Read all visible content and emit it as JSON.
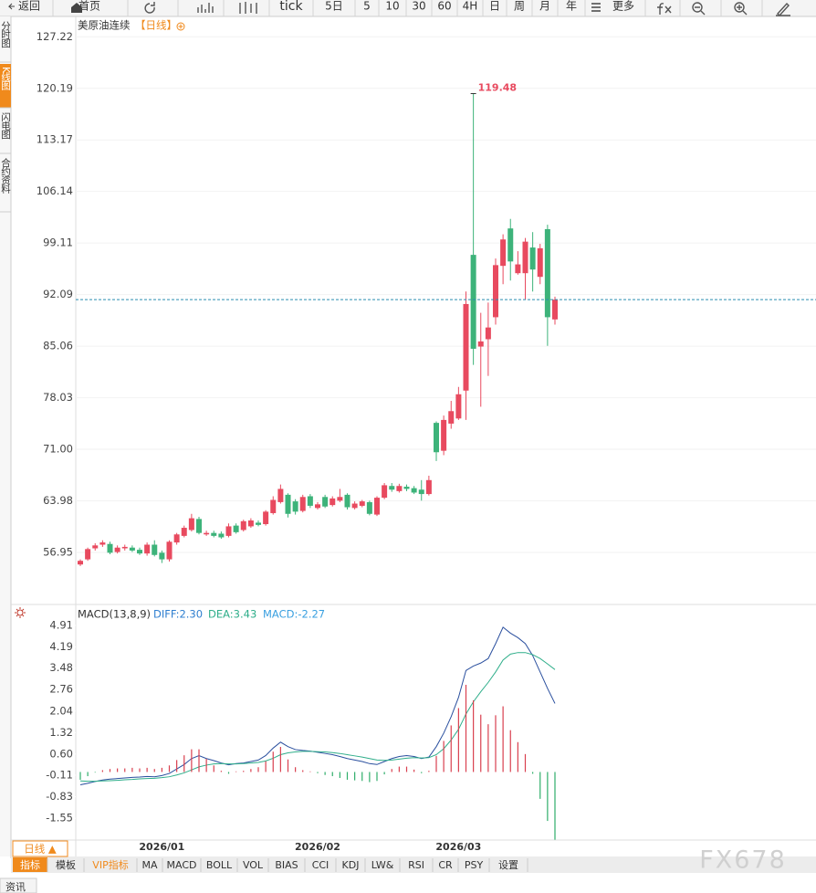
{
  "toolbar": [
    "返回",
    "首页",
    "tick",
    "5日",
    "5",
    "10",
    "30",
    "60",
    "4H",
    "日",
    "周",
    "月",
    "年",
    "更多"
  ],
  "sidebar_tabs": [
    "分时图",
    "K线图",
    "闪电图",
    "合约资料"
  ],
  "instrument": "美原油连续",
  "period_tag": "【日线】",
  "period_button": "日线 ▲",
  "indicator_tabs": [
    "指标",
    "模板",
    "VIP指标",
    "MA",
    "MACD",
    "BOLL",
    "VOL",
    "BIAS",
    "CCI",
    "KDJ",
    "LW&",
    "RSI",
    "CR",
    "PSY",
    "设置"
  ],
  "footer_tab": "资讯",
  "watermark": "FX678",
  "chart_data": [
    {
      "type": "candlestick",
      "up_color": "#e84a5f",
      "down_color": "#3db37a",
      "grid": true,
      "categories": [
        null,
        null,
        null,
        null,
        null,
        null,
        null,
        null,
        null,
        null,
        null,
        "2026/01",
        null,
        null,
        null,
        null,
        null,
        null,
        null,
        null,
        null,
        null,
        null,
        null,
        null,
        null,
        null,
        null,
        null,
        null,
        null,
        null,
        "2026/02",
        null,
        null,
        null,
        null,
        null,
        null,
        null,
        null,
        null,
        null,
        null,
        null,
        null,
        null,
        null,
        null,
        null,
        null,
        "2026/03",
        null,
        null,
        null,
        null,
        null,
        null,
        null,
        null,
        null,
        null,
        null,
        null,
        null
      ],
      "open": [
        55.3,
        56.0,
        57.5,
        58.0,
        58.1,
        57.0,
        57.5,
        57.6,
        57.3,
        56.8,
        58.0,
        56.9,
        56.0,
        58.3,
        59.2,
        60.0,
        61.5,
        59.4,
        59.6,
        59.5,
        59.2,
        60.6,
        60.0,
        60.5,
        61.0,
        60.8,
        62.3,
        63.8,
        64.8,
        63.9,
        62.6,
        64.6,
        63.0,
        64.5,
        63.4,
        64.0,
        64.8,
        63.0,
        63.3,
        63.8,
        62.1,
        64.4,
        66.0,
        65.3,
        65.9,
        65.7,
        65.5,
        64.9,
        74.6,
        70.8,
        74.5,
        75.2,
        79.0,
        97.5,
        85.0,
        86.0,
        89.0,
        96.0,
        101.1,
        95.0,
        95.0,
        98.5,
        94.5,
        101.0,
        88.7
      ],
      "high": [
        56.0,
        57.6,
        58.2,
        58.6,
        58.4,
        57.9,
        58.0,
        57.9,
        57.6,
        58.3,
        58.6,
        57.2,
        58.6,
        59.6,
        60.6,
        62.2,
        61.8,
        59.9,
        59.9,
        59.8,
        60.9,
        60.9,
        61.4,
        61.6,
        61.3,
        62.7,
        64.6,
        66.2,
        65.0,
        64.2,
        64.8,
        64.9,
        63.8,
        64.8,
        64.6,
        65.6,
        65.0,
        63.9,
        64.1,
        64.0,
        64.6,
        66.4,
        66.4,
        66.3,
        66.2,
        66.0,
        66.8,
        67.4,
        74.8,
        75.6,
        77.6,
        79.5,
        92.5,
        119.48,
        89.6,
        91.0,
        97.0,
        100.3,
        102.4,
        98.0,
        99.8,
        100.6,
        99.0,
        101.6,
        91.8
      ],
      "low": [
        55.1,
        55.8,
        57.2,
        57.7,
        56.7,
        56.8,
        57.2,
        57.0,
        56.6,
        56.5,
        56.4,
        55.5,
        55.7,
        58.0,
        59.0,
        59.8,
        59.4,
        59.2,
        59.0,
        58.8,
        59.0,
        59.5,
        59.8,
        60.3,
        60.5,
        60.6,
        62.1,
        63.6,
        61.7,
        62.1,
        62.4,
        63.0,
        62.8,
        63.0,
        63.2,
        63.8,
        62.8,
        62.8,
        63.1,
        62.0,
        61.9,
        64.2,
        65.2,
        65.1,
        65.3,
        64.9,
        64.0,
        64.7,
        69.4,
        70.2,
        73.8,
        75.0,
        75.0,
        82.5,
        76.8,
        81.0,
        88.0,
        93.5,
        94.0,
        94.8,
        91.4,
        92.5,
        93.5,
        85.1,
        88.0
      ],
      "close": [
        55.8,
        57.4,
        57.9,
        58.3,
        56.9,
        57.6,
        57.7,
        57.2,
        56.8,
        58.0,
        56.6,
        56.0,
        58.4,
        59.4,
        60.3,
        61.6,
        59.6,
        59.6,
        59.2,
        59.0,
        60.5,
        59.7,
        61.2,
        61.3,
        60.7,
        62.5,
        64.1,
        65.6,
        62.2,
        62.5,
        64.5,
        63.3,
        63.5,
        63.2,
        64.3,
        64.5,
        63.1,
        63.6,
        63.9,
        62.2,
        64.4,
        66.1,
        65.5,
        66.0,
        65.6,
        65.1,
        64.9,
        66.8,
        70.6,
        75.0,
        76.2,
        78.5,
        90.8,
        84.7,
        85.7,
        87.6,
        96.1,
        99.6,
        96.6,
        96.2,
        99.3,
        95.5,
        98.4,
        89.0,
        91.4
      ],
      "ylim": [
        50.1,
        128.5
      ],
      "yticks": [
        56.95,
        63.98,
        {
          "value": 71,
          "label": "71.00"
        },
        78.03,
        85.06,
        92.09,
        99.11,
        106.14,
        113.17,
        120.19,
        127.22
      ]
    },
    {
      "type": "macd",
      "title": "MACD(13,8,9)",
      "legend_labels": [
        "DIFF:2.30",
        "DEA:3.43",
        "MACD:-2.27"
      ],
      "legend_colors": [
        "#2f7fd0",
        "#2fae8a",
        "#3aa0e0"
      ],
      "ylim": [
        -2.28,
        5.52
      ],
      "yticks": [
        -1.55,
        -0.83,
        -0.11,
        {
          "value": 0.6,
          "label": "0.60"
        },
        1.32,
        2.04,
        2.76,
        3.48,
        4.19,
        4.91
      ],
      "series": [
        {
          "name": "DIFF",
          "color": "#2a4f9e",
          "values": [
            -0.43,
            -0.38,
            -0.32,
            -0.27,
            -0.24,
            -0.22,
            -0.2,
            -0.18,
            -0.17,
            -0.15,
            -0.16,
            -0.12,
            -0.05,
            0.1,
            0.25,
            0.45,
            0.55,
            0.45,
            0.38,
            0.3,
            0.24,
            0.28,
            0.3,
            0.35,
            0.4,
            0.55,
            0.8,
            1.0,
            0.85,
            0.75,
            0.72,
            0.7,
            0.66,
            0.62,
            0.58,
            0.52,
            0.45,
            0.4,
            0.35,
            0.28,
            0.25,
            0.35,
            0.45,
            0.52,
            0.55,
            0.52,
            0.45,
            0.5,
            0.85,
            1.3,
            1.85,
            2.5,
            3.4,
            3.55,
            3.65,
            3.8,
            4.3,
            4.85,
            4.65,
            4.5,
            4.3,
            3.9,
            3.35,
            2.8,
            2.295
          ]
        },
        {
          "name": "DEA",
          "color": "#2fae8a",
          "values": [
            -0.3,
            -0.31,
            -0.31,
            -0.3,
            -0.29,
            -0.28,
            -0.26,
            -0.25,
            -0.23,
            -0.22,
            -0.21,
            -0.19,
            -0.16,
            -0.1,
            -0.03,
            0.07,
            0.17,
            0.23,
            0.27,
            0.28,
            0.27,
            0.27,
            0.28,
            0.3,
            0.32,
            0.37,
            0.46,
            0.58,
            0.64,
            0.67,
            0.69,
            0.69,
            0.68,
            0.67,
            0.65,
            0.62,
            0.58,
            0.54,
            0.5,
            0.45,
            0.4,
            0.39,
            0.4,
            0.43,
            0.46,
            0.48,
            0.47,
            0.48,
            0.58,
            0.78,
            1.07,
            1.43,
            1.94,
            2.35,
            2.69,
            3.0,
            3.35,
            3.75,
            3.95,
            4.0,
            4.0,
            3.93,
            3.8,
            3.62,
            3.43
          ]
        },
        {
          "name": "MACD",
          "up_color": "#d9404f",
          "down_color": "#2fae6a",
          "values": [
            -0.26,
            -0.14,
            -0.02,
            0.06,
            0.1,
            0.12,
            0.12,
            0.14,
            0.12,
            0.14,
            0.1,
            0.14,
            0.22,
            0.4,
            0.56,
            0.76,
            0.76,
            0.44,
            0.22,
            0.04,
            -0.06,
            0.02,
            0.04,
            0.1,
            0.16,
            0.36,
            0.68,
            0.84,
            0.42,
            0.16,
            0.06,
            0.02,
            -0.04,
            -0.1,
            -0.14,
            -0.2,
            -0.26,
            -0.28,
            -0.3,
            -0.34,
            -0.3,
            -0.08,
            0.1,
            0.18,
            0.18,
            0.08,
            -0.04,
            0.04,
            0.54,
            1.04,
            1.56,
            2.14,
            2.92,
            2.4,
            1.92,
            1.6,
            1.9,
            2.2,
            1.4,
            1.0,
            0.6,
            -0.06,
            -0.9,
            -1.64,
            -2.27
          ]
        }
      ]
    }
  ]
}
